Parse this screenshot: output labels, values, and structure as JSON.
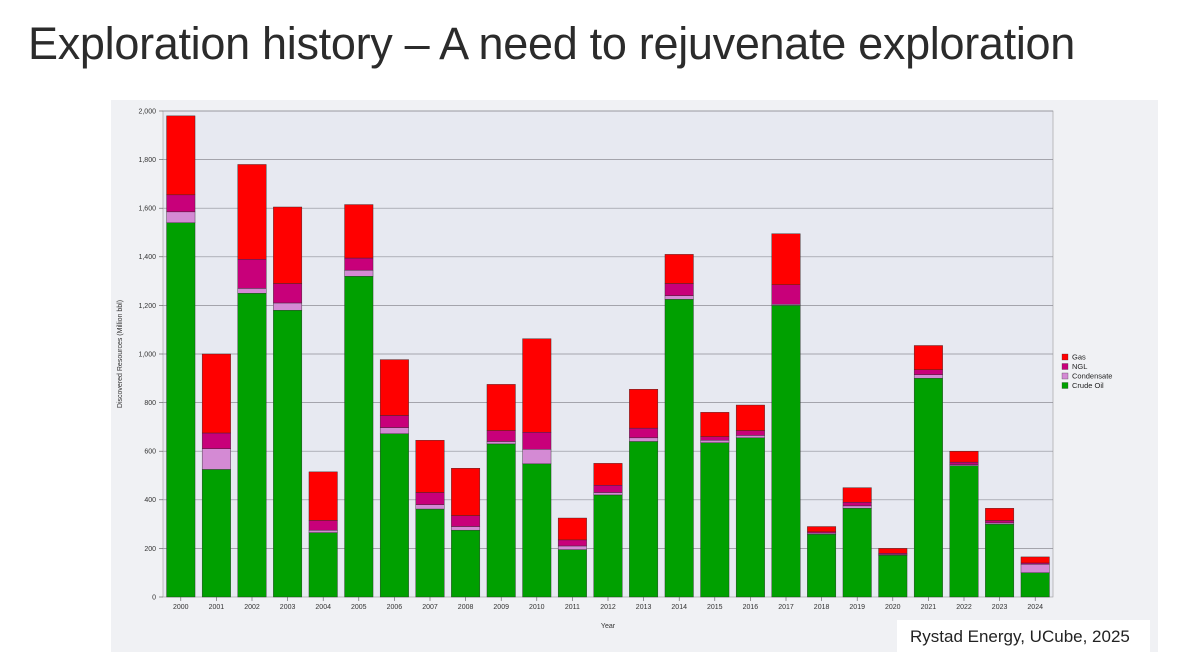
{
  "slide": {
    "title": "Exploration history – A need to rejuvenate exploration",
    "source": "Rystad Energy, UCube, 2025"
  },
  "chart_data": {
    "type": "bar",
    "stacked": true,
    "xlabel": "Year",
    "ylabel": "Discovered Resources (Million bbl)",
    "ylim": [
      0,
      2000
    ],
    "yticks": [
      "0",
      "200",
      "400",
      "600",
      "800",
      "1,000",
      "1,200",
      "1,400",
      "1,600",
      "1,800",
      "2,000"
    ],
    "grid": true,
    "legend_position": "right",
    "categories": [
      "2000",
      "2001",
      "2002",
      "2003",
      "2004",
      "2005",
      "2006",
      "2007",
      "2008",
      "2009",
      "2010",
      "2011",
      "2012",
      "2013",
      "2014",
      "2015",
      "2016",
      "2017",
      "2018",
      "2019",
      "2020",
      "2021",
      "2022",
      "2023",
      "2024"
    ],
    "series": [
      {
        "name": "Crude Oil",
        "color": "#00a000",
        "values": [
          1540,
          525,
          1250,
          1180,
          265,
          1320,
          672,
          362,
          275,
          630,
          548,
          195,
          420,
          640,
          1225,
          635,
          655,
          1200,
          258,
          365,
          172,
          900,
          540,
          300,
          100
        ]
      },
      {
        "name": "Condensate",
        "color": "#d48ad4",
        "values": [
          45,
          85,
          20,
          30,
          10,
          25,
          25,
          18,
          15,
          10,
          60,
          15,
          10,
          15,
          15,
          10,
          10,
          5,
          5,
          10,
          3,
          15,
          5,
          5,
          35
        ]
      },
      {
        "name": "NGL",
        "color": "#c8007a",
        "values": [
          70,
          65,
          120,
          80,
          40,
          50,
          50,
          50,
          45,
          45,
          70,
          25,
          30,
          40,
          50,
          15,
          20,
          80,
          5,
          15,
          5,
          20,
          10,
          10,
          5
        ]
      },
      {
        "name": "Gas",
        "color": "#ff0000",
        "values": [
          325,
          325,
          390,
          315,
          200,
          220,
          230,
          215,
          195,
          190,
          385,
          90,
          90,
          160,
          120,
          100,
          105,
          210,
          22,
          60,
          20,
          100,
          45,
          50,
          25
        ]
      }
    ],
    "legend_order": [
      "Gas",
      "NGL",
      "Condensate",
      "Crude Oil"
    ]
  }
}
